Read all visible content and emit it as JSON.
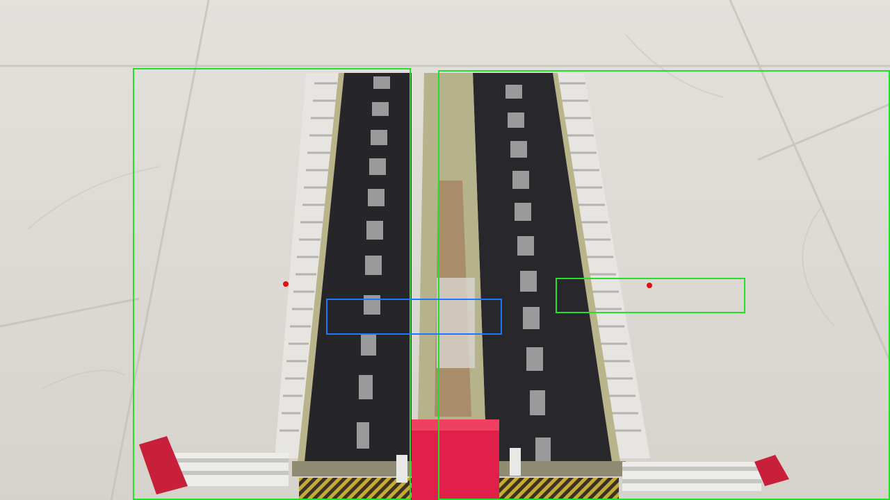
{
  "scene": {
    "description_icons": [
      "road-track-icon",
      "barrier-icon",
      "crosswalk-icon"
    ],
    "colors": {
      "floor": "#dcdad4",
      "floor_vein": "#c9c6bf",
      "road": "#26252a",
      "lane_mark": "#9a9a9a",
      "median": "#a98c6a",
      "curb": "#b9b48a",
      "fence": "#e8e8e6",
      "red_block": "#e0204a",
      "barrier_red": "#c8203a",
      "crosswalk": "#c7a93a"
    }
  },
  "overlays": {
    "green_color": "#22e12a",
    "blue_color": "#1e78ff",
    "point_color": "#e01010"
  }
}
